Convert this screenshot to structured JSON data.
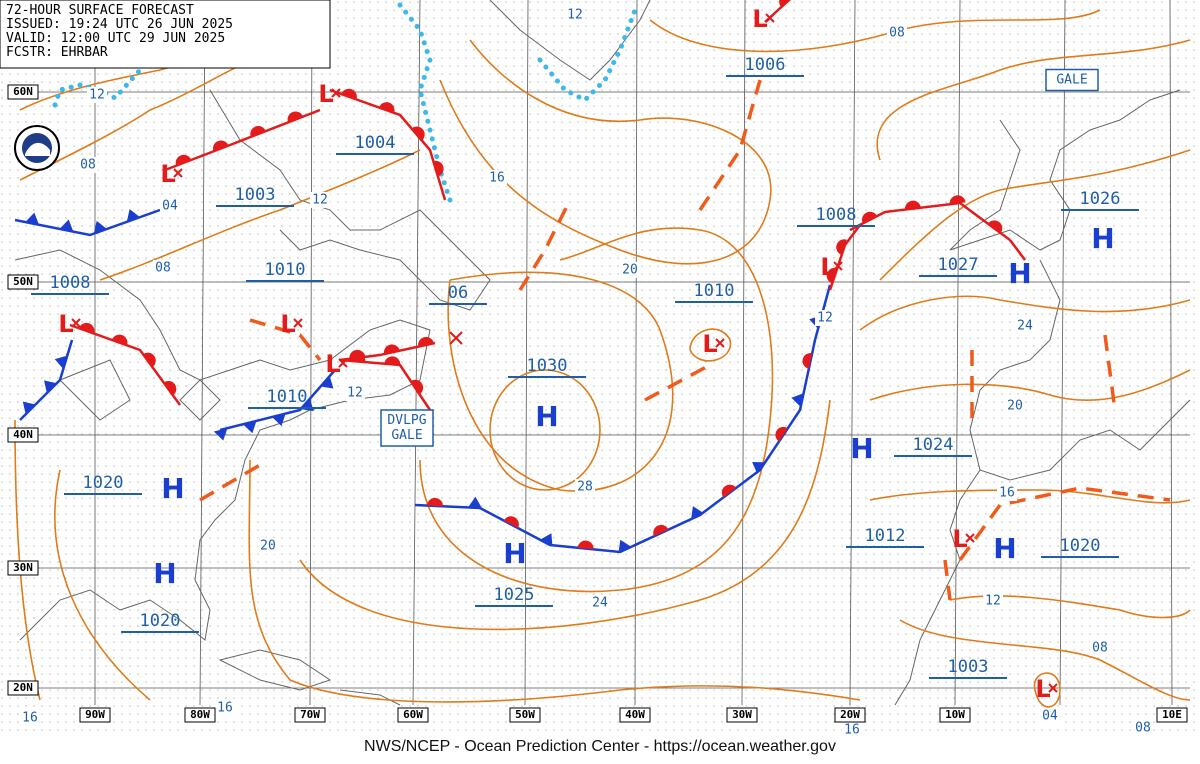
{
  "header": {
    "title": "72-HOUR SURFACE FORECAST",
    "issued": "ISSUED: 19:24 UTC 26 JUN 2025",
    "valid": "VALID: 12:00 UTC 29 JUN 2025",
    "forecaster": "FCSTR: EHRBAR"
  },
  "latitude_labels": [
    "60N",
    "50N",
    "40N",
    "30N",
    "20N"
  ],
  "longitude_labels": [
    "90W",
    "80W",
    "70W",
    "60W",
    "50W",
    "40W",
    "30W",
    "20W",
    "10W",
    "10E"
  ],
  "pressures": [
    "1006",
    "1004",
    "1003",
    "1010",
    "1008",
    "06",
    "1010",
    "1008",
    "1026",
    "1027",
    "1030",
    "1010",
    "1024",
    "1020",
    "1012",
    "1020",
    "1025",
    "1020",
    "1003"
  ],
  "highs": [
    "H",
    "H",
    "H",
    "H",
    "H",
    "H",
    "H",
    "H"
  ],
  "lows": [
    "L",
    "L",
    "L",
    "L",
    "L",
    "L",
    "L",
    "L",
    "L",
    "L"
  ],
  "isobar_labels": [
    "12",
    "08",
    "12",
    "08",
    "04",
    "16",
    "12",
    "08",
    "20",
    "12",
    "24",
    "12",
    "20",
    "28",
    "16",
    "20",
    "24",
    "12",
    "08",
    "04",
    "16",
    "16",
    "16",
    "08"
  ],
  "warnings": [
    {
      "lines": [
        "GALE"
      ]
    },
    {
      "lines": [
        "DVLPG",
        "GALE"
      ]
    }
  ],
  "footer": "NWS/NCEP - Ocean Prediction Center - https://ocean.weather.gov"
}
